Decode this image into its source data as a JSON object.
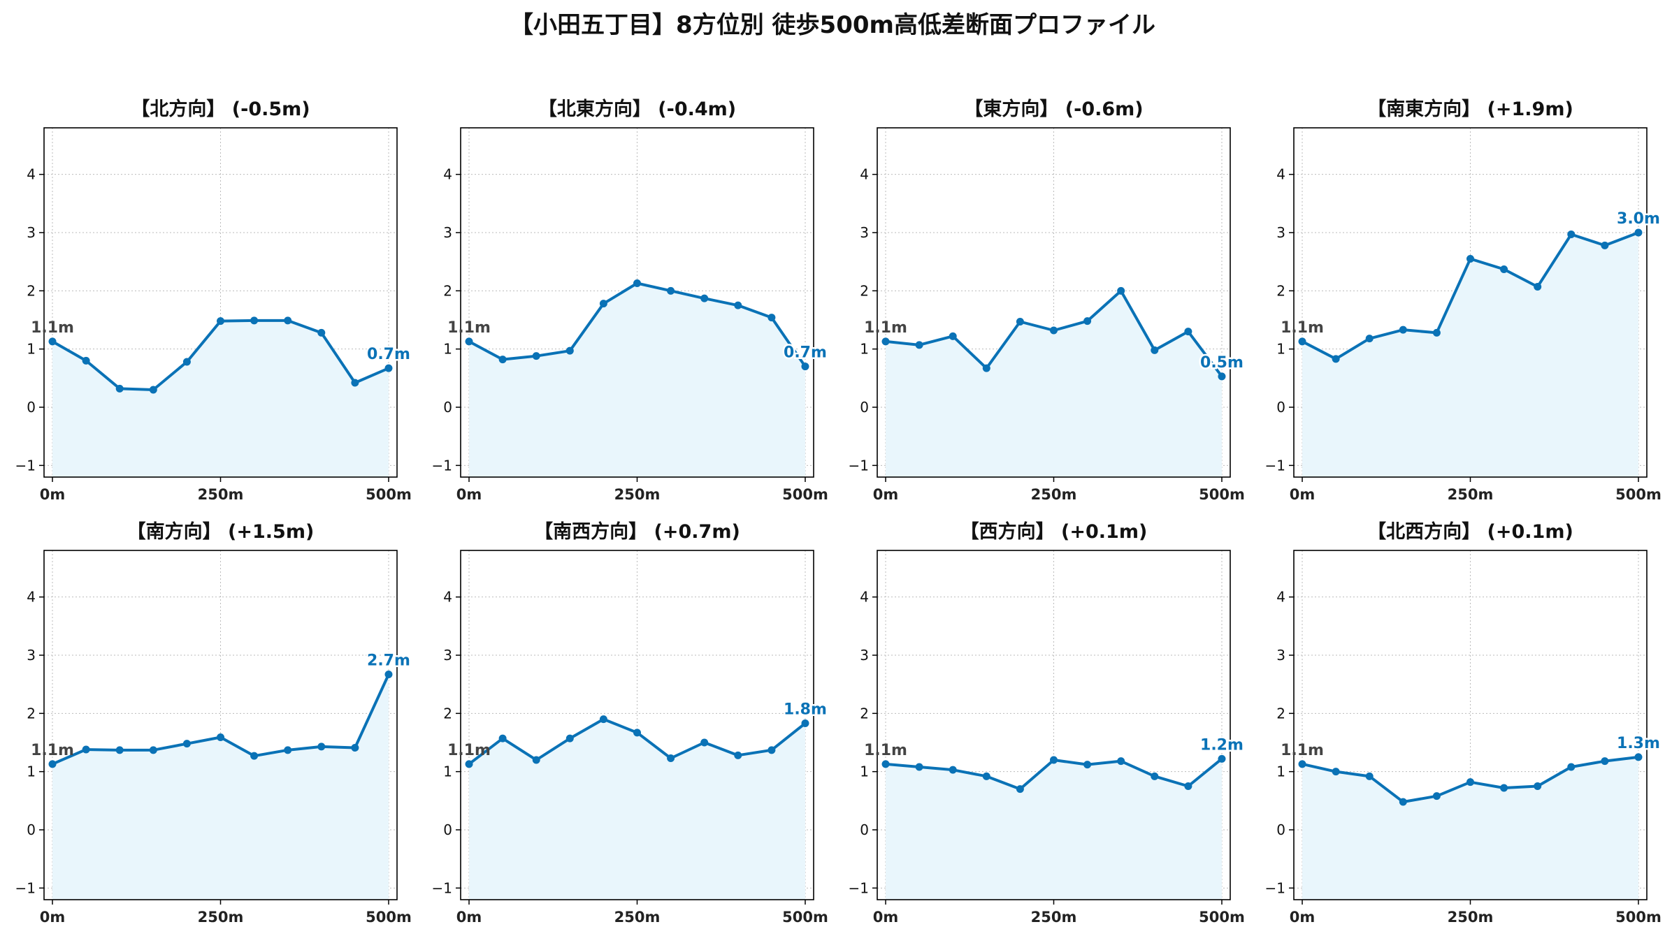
{
  "title": "【小田五丁目】8方位別 徒歩500m高低差断面プロファイル",
  "colors": {
    "line": "#0a72b6",
    "fill": "#e9f6fc",
    "grid": "#bbbbbb",
    "start_label": "#444444"
  },
  "chart_data": [
    {
      "type": "line",
      "title": "【北方向】 (-0.5m)",
      "x": [
        0,
        50,
        100,
        150,
        200,
        250,
        300,
        350,
        400,
        450,
        500
      ],
      "y": [
        1.13,
        0.8,
        0.32,
        0.3,
        0.78,
        1.48,
        1.49,
        1.49,
        1.28,
        0.42,
        0.67
      ],
      "start_label": "1.1m",
      "end_label": "0.7m",
      "xticks": [
        "0m",
        "250m",
        "500m"
      ],
      "ylim": [
        -1.2,
        4.8
      ],
      "yticks": [
        -1,
        0,
        1,
        2,
        3,
        4
      ],
      "grid": true
    },
    {
      "type": "line",
      "title": "【北東方向】 (-0.4m)",
      "x": [
        0,
        50,
        100,
        150,
        200,
        250,
        300,
        350,
        400,
        450,
        500
      ],
      "y": [
        1.13,
        0.82,
        0.88,
        0.97,
        1.78,
        2.13,
        2.0,
        1.87,
        1.75,
        1.54,
        0.7
      ],
      "start_label": "1.1m",
      "end_label": "0.7m",
      "xticks": [
        "0m",
        "250m",
        "500m"
      ],
      "ylim": [
        -1.2,
        4.8
      ],
      "yticks": [
        -1,
        0,
        1,
        2,
        3,
        4
      ],
      "grid": true
    },
    {
      "type": "line",
      "title": "【東方向】 (-0.6m)",
      "x": [
        0,
        50,
        100,
        150,
        200,
        250,
        300,
        350,
        400,
        450,
        500
      ],
      "y": [
        1.13,
        1.07,
        1.22,
        0.67,
        1.47,
        1.32,
        1.48,
        2.0,
        0.98,
        1.3,
        0.53
      ],
      "start_label": "1.1m",
      "end_label": "0.5m",
      "xticks": [
        "0m",
        "250m",
        "500m"
      ],
      "ylim": [
        -1.2,
        4.8
      ],
      "yticks": [
        -1,
        0,
        1,
        2,
        3,
        4
      ],
      "grid": true
    },
    {
      "type": "line",
      "title": "【南東方向】 (+1.9m)",
      "x": [
        0,
        50,
        100,
        150,
        200,
        250,
        300,
        350,
        400,
        450,
        500
      ],
      "y": [
        1.13,
        0.83,
        1.18,
        1.33,
        1.28,
        2.55,
        2.37,
        2.07,
        2.97,
        2.78,
        3.0
      ],
      "start_label": "1.1m",
      "end_label": "3.0m",
      "xticks": [
        "0m",
        "250m",
        "500m"
      ],
      "ylim": [
        -1.2,
        4.8
      ],
      "yticks": [
        -1,
        0,
        1,
        2,
        3,
        4
      ],
      "grid": true
    },
    {
      "type": "line",
      "title": "【南方向】 (+1.5m)",
      "x": [
        0,
        50,
        100,
        150,
        200,
        250,
        300,
        350,
        400,
        450,
        500
      ],
      "y": [
        1.13,
        1.38,
        1.37,
        1.37,
        1.48,
        1.59,
        1.27,
        1.37,
        1.43,
        1.41,
        2.67
      ],
      "start_label": "1.1m",
      "end_label": "2.7m",
      "xticks": [
        "0m",
        "250m",
        "500m"
      ],
      "ylim": [
        -1.2,
        4.8
      ],
      "yticks": [
        -1,
        0,
        1,
        2,
        3,
        4
      ],
      "grid": true
    },
    {
      "type": "line",
      "title": "【南西方向】 (+0.7m)",
      "x": [
        0,
        50,
        100,
        150,
        200,
        250,
        300,
        350,
        400,
        450,
        500
      ],
      "y": [
        1.13,
        1.57,
        1.2,
        1.57,
        1.9,
        1.67,
        1.23,
        1.5,
        1.28,
        1.37,
        1.83
      ],
      "start_label": "1.1m",
      "end_label": "1.8m",
      "xticks": [
        "0m",
        "250m",
        "500m"
      ],
      "ylim": [
        -1.2,
        4.8
      ],
      "yticks": [
        -1,
        0,
        1,
        2,
        3,
        4
      ],
      "grid": true
    },
    {
      "type": "line",
      "title": "【西方向】 (+0.1m)",
      "x": [
        0,
        50,
        100,
        150,
        200,
        250,
        300,
        350,
        400,
        450,
        500
      ],
      "y": [
        1.13,
        1.08,
        1.03,
        0.92,
        0.7,
        1.2,
        1.12,
        1.18,
        0.92,
        0.75,
        1.22
      ],
      "start_label": "1.1m",
      "end_label": "1.2m",
      "xticks": [
        "0m",
        "250m",
        "500m"
      ],
      "ylim": [
        -1.2,
        4.8
      ],
      "yticks": [
        -1,
        0,
        1,
        2,
        3,
        4
      ],
      "grid": true
    },
    {
      "type": "line",
      "title": "【北西方向】 (+0.1m)",
      "x": [
        0,
        50,
        100,
        150,
        200,
        250,
        300,
        350,
        400,
        450,
        500
      ],
      "y": [
        1.13,
        1.0,
        0.92,
        0.48,
        0.58,
        0.82,
        0.72,
        0.75,
        1.08,
        1.18,
        1.25
      ],
      "start_label": "1.1m",
      "end_label": "1.3m",
      "xticks": [
        "0m",
        "250m",
        "500m"
      ],
      "ylim": [
        -1.2,
        4.8
      ],
      "yticks": [
        -1,
        0,
        1,
        2,
        3,
        4
      ],
      "grid": true
    }
  ]
}
